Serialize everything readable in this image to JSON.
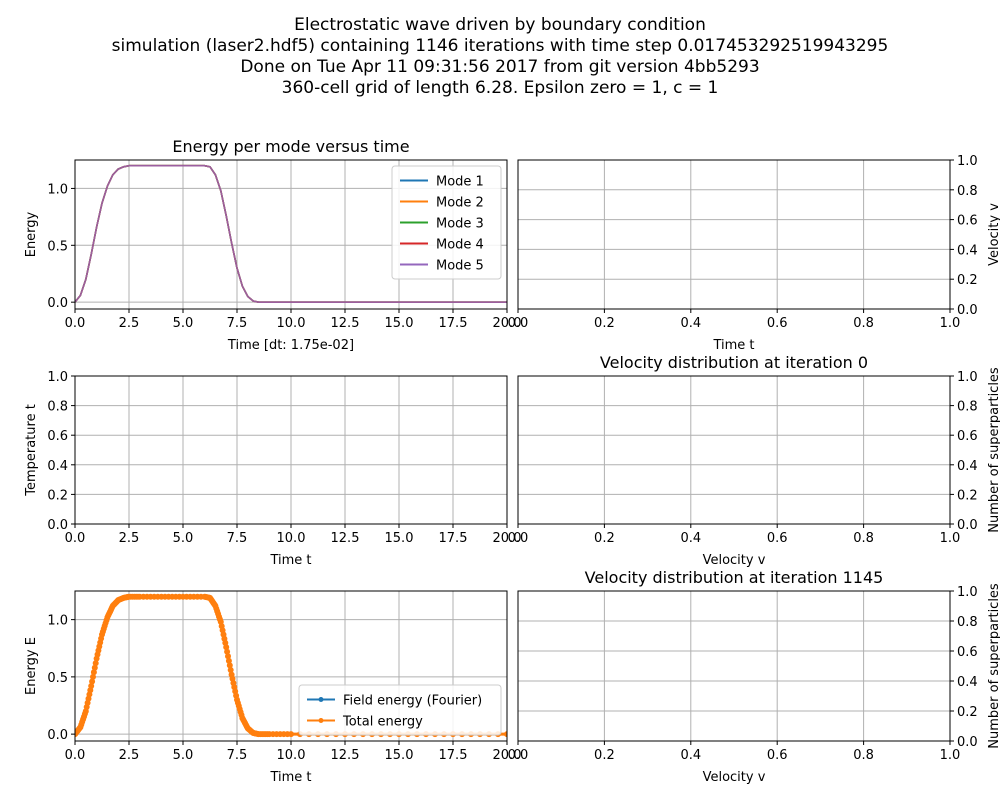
{
  "suptitle": [
    "Electrostatic wave driven by boundary condition",
    "simulation (laser2.hdf5) containing 1146 iterations with time step 0.017453292519943295",
    "Done on Tue Apr 11 09:31:56 2017 from git version 4bb5293",
    "360-cell grid of length 6.28. Epsilon zero = 1, c = 1"
  ],
  "colors": {
    "mode1": "#1f77b4",
    "mode2": "#ff7f0e",
    "mode3": "#2ca02c",
    "mode4": "#d62728",
    "mode5": "#9467bd",
    "grid": "#b0b0b0"
  },
  "chart_data": [
    {
      "id": "energy-modes",
      "type": "line",
      "title": "Energy per mode versus time",
      "xlabel": "Time [dt: 1.75e-02]",
      "ylabel": "Energy",
      "xlim": [
        0,
        20
      ],
      "ylim": [
        -0.06,
        1.25
      ],
      "xticks": [
        0,
        2.5,
        5,
        7.5,
        10,
        12.5,
        15,
        17.5,
        20
      ],
      "xticklabels": [
        "0.0",
        "2.5",
        "5.0",
        "7.5",
        "10.0",
        "12.5",
        "15.0",
        "17.5",
        "20.0"
      ],
      "yticks": [
        0,
        0.5,
        1
      ],
      "yticklabels": [
        "0.0",
        "0.5",
        "1.0"
      ],
      "grid": true,
      "legend": "top-right",
      "x": [
        0,
        0.25,
        0.5,
        0.75,
        1,
        1.25,
        1.5,
        1.75,
        2,
        2.25,
        2.5,
        3,
        4,
        5,
        6,
        6.25,
        6.5,
        6.75,
        7,
        7.25,
        7.5,
        7.75,
        8,
        8.25,
        8.5,
        9,
        10,
        12.5,
        15,
        17.5,
        20
      ],
      "series": [
        {
          "name": "Mode 1",
          "values": [
            0,
            0.06,
            0.2,
            0.42,
            0.66,
            0.87,
            1.02,
            1.12,
            1.17,
            1.19,
            1.2,
            1.2,
            1.2,
            1.2,
            1.2,
            1.19,
            1.12,
            0.98,
            0.76,
            0.52,
            0.3,
            0.14,
            0.05,
            0.01,
            0,
            0,
            0,
            0,
            0,
            0,
            0
          ]
        },
        {
          "name": "Mode 2",
          "values": [
            0,
            0.06,
            0.2,
            0.42,
            0.66,
            0.87,
            1.02,
            1.12,
            1.17,
            1.19,
            1.2,
            1.2,
            1.2,
            1.2,
            1.2,
            1.19,
            1.12,
            0.98,
            0.76,
            0.52,
            0.3,
            0.14,
            0.05,
            0.01,
            0,
            0,
            0,
            0,
            0,
            0,
            0
          ]
        },
        {
          "name": "Mode 3",
          "values": [
            0,
            0.06,
            0.2,
            0.42,
            0.66,
            0.87,
            1.02,
            1.12,
            1.17,
            1.19,
            1.2,
            1.2,
            1.2,
            1.2,
            1.2,
            1.19,
            1.12,
            0.98,
            0.76,
            0.52,
            0.3,
            0.14,
            0.05,
            0.01,
            0,
            0,
            0,
            0,
            0,
            0,
            0
          ]
        },
        {
          "name": "Mode 4",
          "values": [
            0,
            0.06,
            0.2,
            0.42,
            0.66,
            0.87,
            1.02,
            1.12,
            1.17,
            1.19,
            1.2,
            1.2,
            1.2,
            1.2,
            1.2,
            1.19,
            1.12,
            0.98,
            0.76,
            0.52,
            0.3,
            0.14,
            0.05,
            0.01,
            0,
            0,
            0,
            0,
            0,
            0,
            0
          ]
        },
        {
          "name": "Mode 5",
          "values": [
            0,
            0.06,
            0.2,
            0.42,
            0.66,
            0.87,
            1.02,
            1.12,
            1.17,
            1.19,
            1.2,
            1.2,
            1.2,
            1.2,
            1.2,
            1.19,
            1.12,
            0.98,
            0.76,
            0.52,
            0.3,
            0.14,
            0.05,
            0.01,
            0,
            0,
            0,
            0,
            0,
            0,
            0
          ]
        }
      ]
    },
    {
      "id": "velocity-time",
      "type": "line",
      "title": "",
      "xlabel": "Time t",
      "ylabel": "Velocity v",
      "yaxis_side": "right",
      "xlim": [
        0,
        1
      ],
      "ylim": [
        0,
        1
      ],
      "xticks": [
        0,
        0.2,
        0.4,
        0.6,
        0.8,
        1
      ],
      "xticklabels": [
        "0.0",
        "0.2",
        "0.4",
        "0.6",
        "0.8",
        "1.0"
      ],
      "yticks": [
        0,
        0.2,
        0.4,
        0.6,
        0.8,
        1
      ],
      "yticklabels": [
        "0.0",
        "0.2",
        "0.4",
        "0.6",
        "0.8",
        "1.0"
      ],
      "grid": true,
      "series": []
    },
    {
      "id": "temperature",
      "type": "line",
      "title": "",
      "xlabel": "Time t",
      "ylabel": "Temperature t",
      "xlim": [
        0,
        20
      ],
      "ylim": [
        0,
        1
      ],
      "xticks": [
        0,
        2.5,
        5,
        7.5,
        10,
        12.5,
        15,
        17.5,
        20
      ],
      "xticklabels": [
        "0.0",
        "2.5",
        "5.0",
        "7.5",
        "10.0",
        "12.5",
        "15.0",
        "17.5",
        "20.0"
      ],
      "yticks": [
        0,
        0.2,
        0.4,
        0.6,
        0.8,
        1
      ],
      "yticklabels": [
        "0.0",
        "0.2",
        "0.4",
        "0.6",
        "0.8",
        "1.0"
      ],
      "grid": true,
      "series": []
    },
    {
      "id": "vdist-0",
      "type": "line",
      "title": "Velocity distribution at iteration 0",
      "xlabel": "Velocity v",
      "ylabel": "Number of superparticles",
      "yaxis_side": "right",
      "xlim": [
        0,
        1
      ],
      "ylim": [
        0,
        1
      ],
      "xticks": [
        0,
        0.2,
        0.4,
        0.6,
        0.8,
        1
      ],
      "xticklabels": [
        "0.0",
        "0.2",
        "0.4",
        "0.6",
        "0.8",
        "1.0"
      ],
      "yticks": [
        0,
        0.2,
        0.4,
        0.6,
        0.8,
        1
      ],
      "yticklabels": [
        "0.0",
        "0.2",
        "0.4",
        "0.6",
        "0.8",
        "1.0"
      ],
      "grid": true,
      "series": []
    },
    {
      "id": "energy-total",
      "type": "line",
      "title": "",
      "xlabel": "Time t",
      "ylabel": "Energy E",
      "xlim": [
        0,
        20
      ],
      "ylim": [
        -0.06,
        1.25
      ],
      "xticks": [
        0,
        2.5,
        5,
        7.5,
        10,
        12.5,
        15,
        17.5,
        20
      ],
      "xticklabels": [
        "0.0",
        "2.5",
        "5.0",
        "7.5",
        "10.0",
        "12.5",
        "15.0",
        "17.5",
        "20.0"
      ],
      "yticks": [
        0,
        0.5,
        1
      ],
      "yticklabels": [
        "0.0",
        "0.5",
        "1.0"
      ],
      "grid": true,
      "legend": "bottom-right",
      "markers": true,
      "x": [
        0,
        0.25,
        0.5,
        0.75,
        1,
        1.25,
        1.5,
        1.75,
        2,
        2.25,
        2.5,
        3,
        4,
        5,
        6,
        6.25,
        6.5,
        6.75,
        7,
        7.25,
        7.5,
        7.75,
        8,
        8.25,
        8.5,
        9,
        10,
        12.5,
        15,
        17.5,
        20
      ],
      "series": [
        {
          "name": "Field energy (Fourier)",
          "color": "#1f77b4",
          "values": [
            0,
            0.06,
            0.2,
            0.42,
            0.66,
            0.87,
            1.02,
            1.12,
            1.17,
            1.19,
            1.2,
            1.2,
            1.2,
            1.2,
            1.2,
            1.19,
            1.12,
            0.98,
            0.76,
            0.52,
            0.3,
            0.14,
            0.05,
            0.01,
            0,
            0,
            0,
            0,
            0,
            0,
            0
          ]
        },
        {
          "name": "Total energy",
          "color": "#ff7f0e",
          "values": [
            0,
            0.06,
            0.2,
            0.42,
            0.66,
            0.87,
            1.02,
            1.12,
            1.17,
            1.19,
            1.2,
            1.2,
            1.2,
            1.2,
            1.2,
            1.19,
            1.12,
            0.98,
            0.76,
            0.52,
            0.3,
            0.14,
            0.05,
            0.01,
            0,
            0,
            0,
            0,
            0,
            0,
            0
          ]
        }
      ]
    },
    {
      "id": "vdist-1145",
      "type": "line",
      "title": "Velocity distribution at iteration 1145",
      "xlabel": "Velocity v",
      "ylabel": "Number of superparticles",
      "yaxis_side": "right",
      "xlim": [
        0,
        1
      ],
      "ylim": [
        0,
        1
      ],
      "xticks": [
        0,
        0.2,
        0.4,
        0.6,
        0.8,
        1
      ],
      "xticklabels": [
        "0.0",
        "0.2",
        "0.4",
        "0.6",
        "0.8",
        "1.0"
      ],
      "yticks": [
        0,
        0.2,
        0.4,
        0.6,
        0.8,
        1
      ],
      "yticklabels": [
        "0.0",
        "0.2",
        "0.4",
        "0.6",
        "0.8",
        "1.0"
      ],
      "grid": true,
      "series": []
    }
  ]
}
